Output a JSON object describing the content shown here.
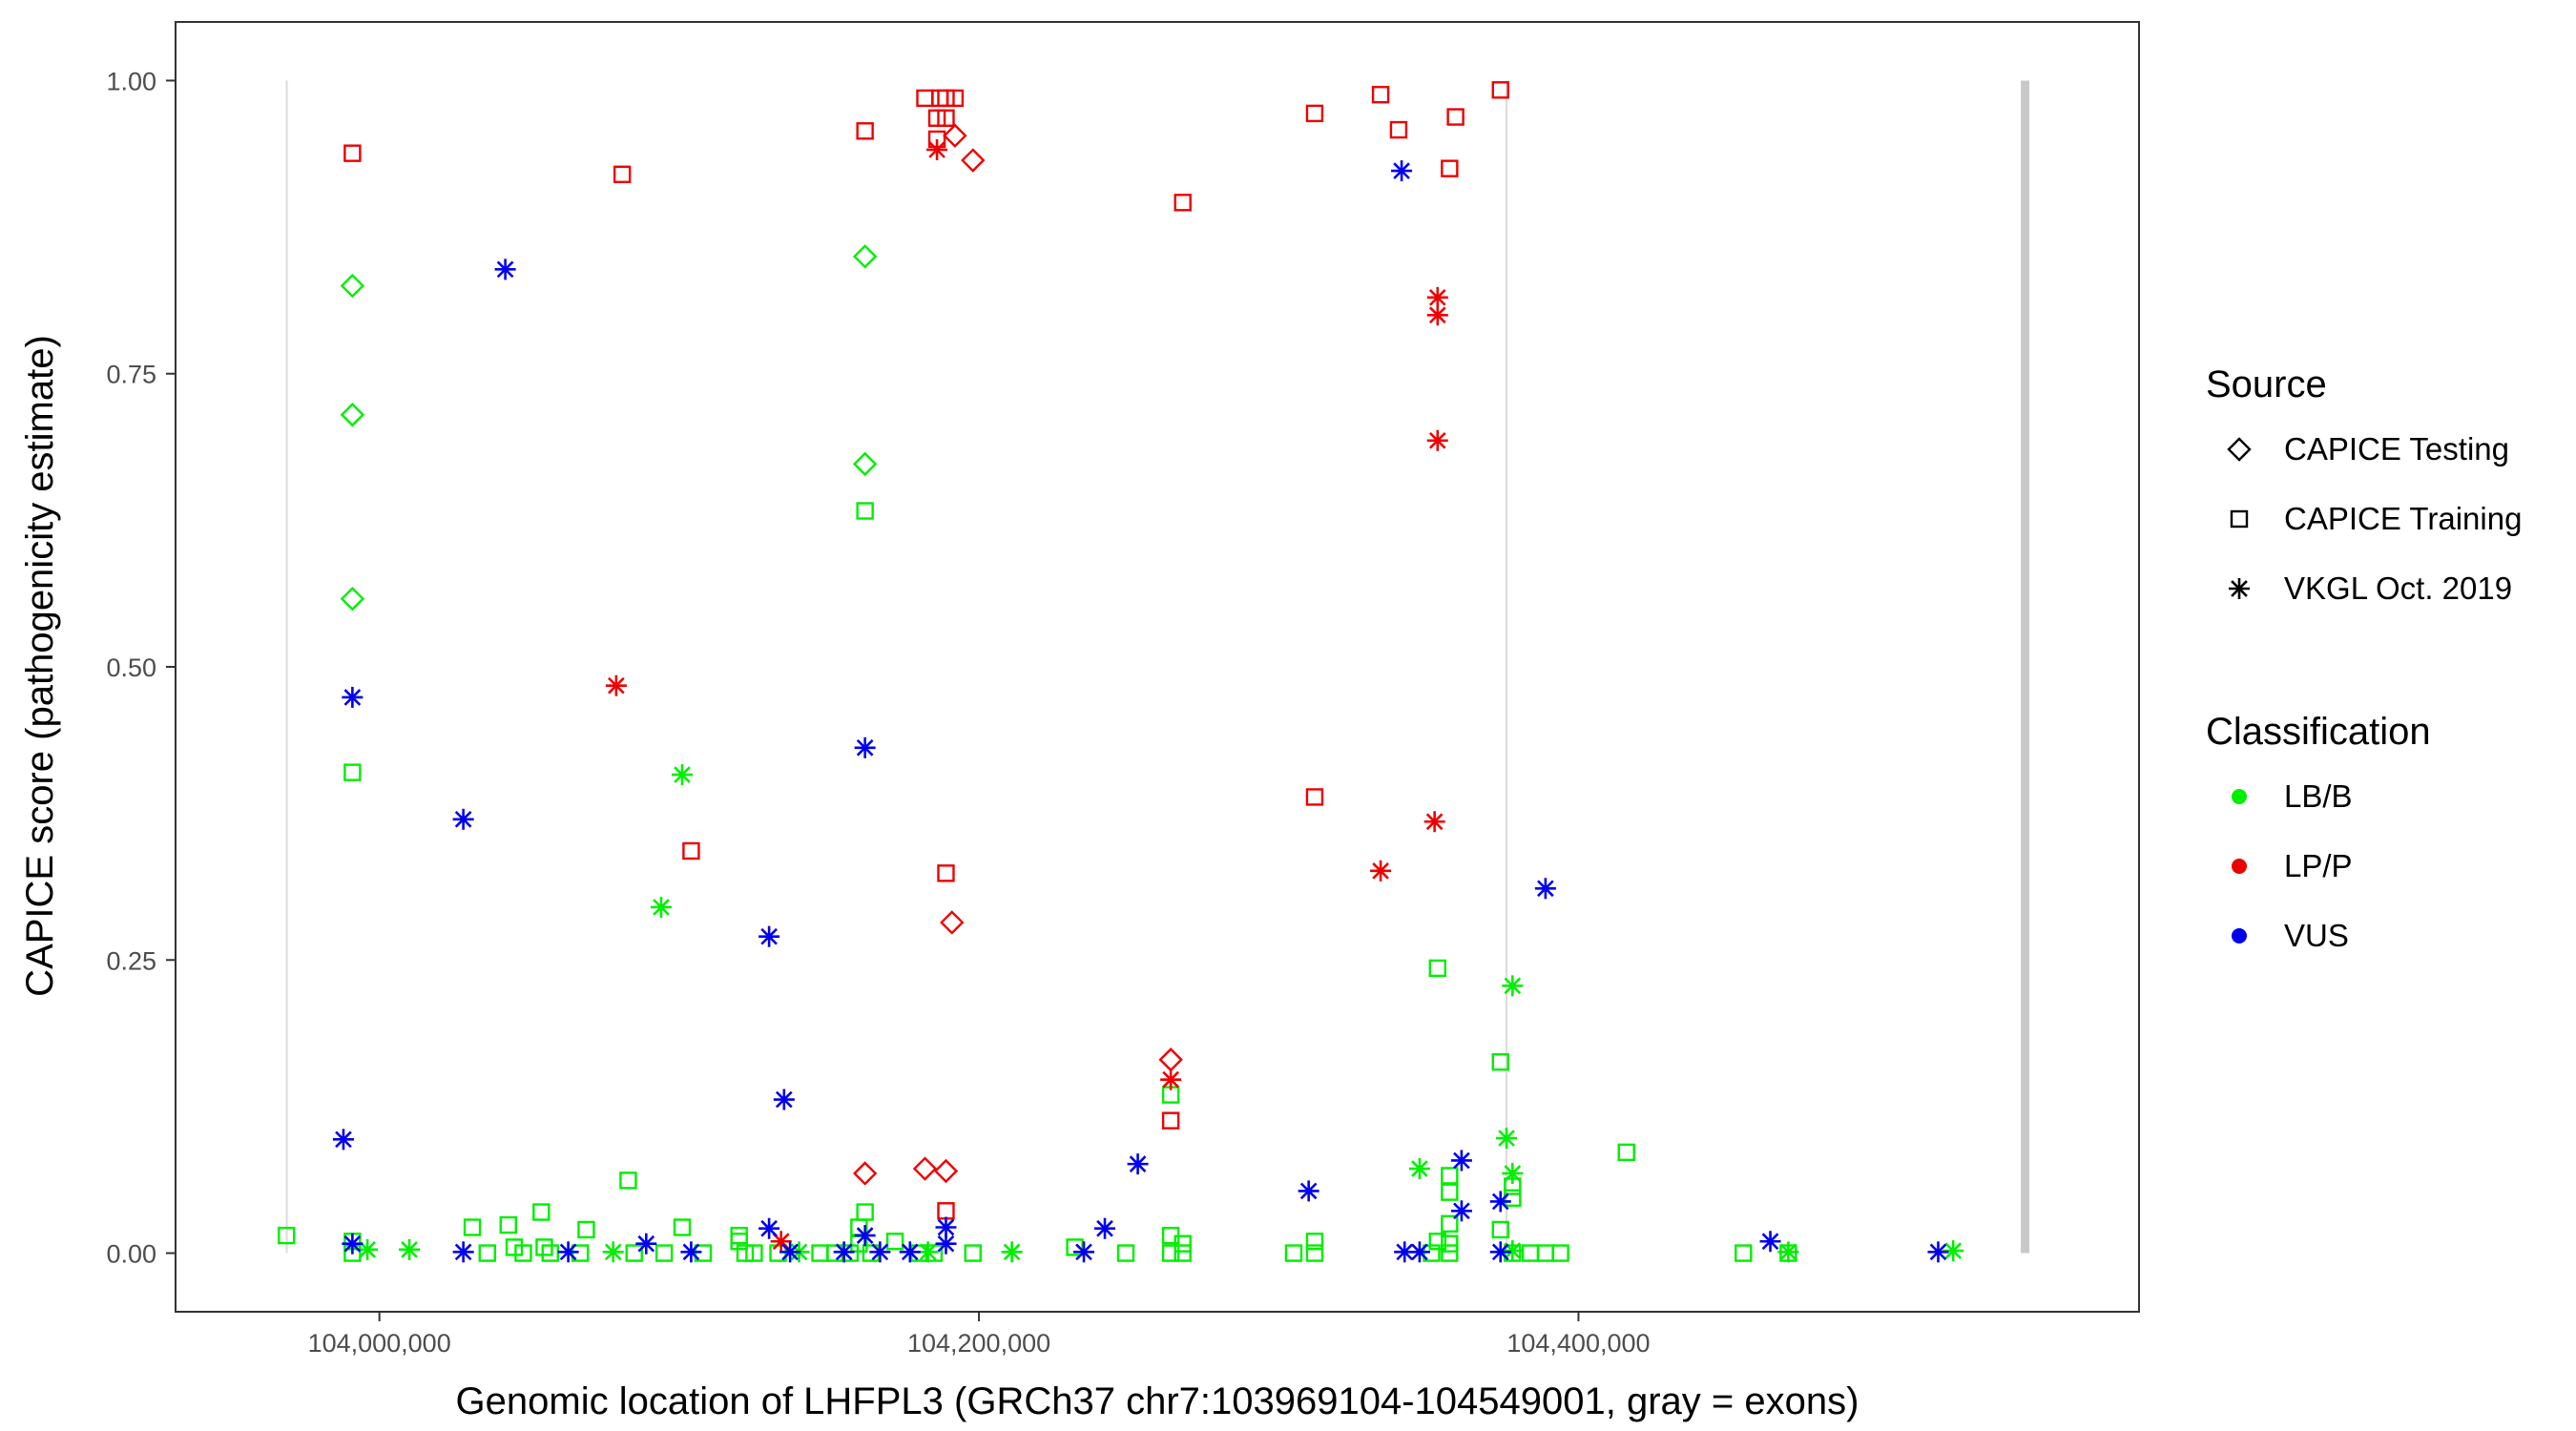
{
  "chart_data": {
    "type": "scatter",
    "title": "",
    "xlabel": "Genomic location of LHFPL3 (GRCh37 chr7:103969104-104549001, gray = exons)",
    "ylabel": "CAPICE score (pathogenicity estimate)",
    "xlim": [
      103932000,
      104587000
    ],
    "ylim": [
      -0.05,
      1.05
    ],
    "x_ticks": [
      104000000,
      104200000,
      104400000
    ],
    "x_tick_labels": [
      "104,000,000",
      "104,200,000",
      "104,400,000"
    ],
    "y_ticks": [
      0,
      0.25,
      0.5,
      0.75,
      1
    ],
    "y_tick_labels": [
      "0.00",
      "0.25",
      "0.50",
      "0.75",
      "1.00"
    ],
    "grid": false,
    "exons": [
      {
        "position": 103969104,
        "thick": false
      },
      {
        "position": 104376000,
        "thick": false
      },
      {
        "position": 104549001,
        "thick": true
      }
    ],
    "legend": {
      "placement": "right",
      "source": {
        "title": "Source",
        "items": [
          {
            "label": "CAPICE Testing",
            "shape": "diamond"
          },
          {
            "label": "CAPICE Training",
            "shape": "square"
          },
          {
            "label": "VKGL Oct. 2019",
            "shape": "asterisk"
          }
        ]
      },
      "classification": {
        "title": "Classification",
        "items": [
          {
            "label": "LB/B",
            "color": "#00ee00"
          },
          {
            "label": "LP/P",
            "color": "#ee0000"
          },
          {
            "label": "VUS",
            "color": "#0000ee"
          }
        ]
      }
    },
    "colors": {
      "LB/B": "#00ee00",
      "LP/P": "#ee0000",
      "VUS": "#0000ee"
    },
    "series": [
      {
        "source": "CAPICE Testing",
        "classification": "LB/B",
        "points": [
          [
            103991000,
            0.825
          ],
          [
            103991000,
            0.715
          ],
          [
            103991000,
            0.558
          ],
          [
            104162000,
            0.85
          ],
          [
            104162000,
            0.673
          ]
        ]
      },
      {
        "source": "CAPICE Testing",
        "classification": "LP/P",
        "points": [
          [
            104192000,
            0.953
          ],
          [
            104198000,
            0.932
          ],
          [
            104191000,
            0.282
          ],
          [
            104264000,
            0.165
          ],
          [
            104162000,
            0.068
          ],
          [
            104182000,
            0.072
          ],
          [
            104189000,
            0.07
          ]
        ]
      },
      {
        "source": "CAPICE Training",
        "classification": "LB/B",
        "points": [
          [
            103969000,
            0.015
          ],
          [
            103991000,
            0.41
          ],
          [
            104162000,
            0.633
          ],
          [
            104353000,
            0.243
          ],
          [
            104374000,
            0.163
          ],
          [
            104416000,
            0.086
          ],
          [
            104083000,
            0.062
          ],
          [
            104357000,
            0.066
          ],
          [
            104357000,
            0.052
          ],
          [
            104378000,
            0.057
          ],
          [
            104378000,
            0.047
          ],
          [
            104162000,
            0.035
          ],
          [
            104054000,
            0.035
          ],
          [
            104031000,
            0.022
          ],
          [
            104043000,
            0.024
          ],
          [
            104069000,
            0.02
          ],
          [
            104101000,
            0.022
          ],
          [
            104120000,
            0.015
          ],
          [
            104160000,
            0.022
          ],
          [
            104357000,
            0.025
          ],
          [
            104374000,
            0.02
          ],
          [
            104264000,
            0.135
          ],
          [
            104264000,
            0.015
          ],
          [
            103991000,
            0.01
          ],
          [
            104172000,
            0.01
          ],
          [
            104120000,
            0.01
          ],
          [
            104312000,
            0.01
          ],
          [
            104353000,
            0.01
          ],
          [
            104357000,
            0.008
          ],
          [
            104268000,
            0.008
          ],
          [
            104160000,
            0.008
          ],
          [
            104232000,
            0.005
          ],
          [
            104045000,
            0.005
          ],
          [
            104055000,
            0.005
          ],
          [
            103991000,
            0.0
          ],
          [
            104036000,
            0.0
          ],
          [
            104048000,
            0.0
          ],
          [
            104057000,
            0.0
          ],
          [
            104067000,
            0.0
          ],
          [
            104085000,
            0.0
          ],
          [
            104095000,
            0.0
          ],
          [
            104108000,
            0.0
          ],
          [
            104122000,
            0.0
          ],
          [
            104125000,
            0.0
          ],
          [
            104133000,
            0.0
          ],
          [
            104147000,
            0.0
          ],
          [
            104152000,
            0.0
          ],
          [
            104157000,
            0.0
          ],
          [
            104164000,
            0.0
          ],
          [
            104180000,
            0.0
          ],
          [
            104185000,
            0.0
          ],
          [
            104198000,
            0.0
          ],
          [
            104249000,
            0.0
          ],
          [
            104264000,
            0.0
          ],
          [
            104268000,
            0.0
          ],
          [
            104305000,
            0.0
          ],
          [
            104312000,
            0.0
          ],
          [
            104351000,
            0.0
          ],
          [
            104357000,
            0.0
          ],
          [
            104378000,
            0.0
          ],
          [
            104384000,
            0.0
          ],
          [
            104389000,
            0.0
          ],
          [
            104394000,
            0.0
          ],
          [
            104455000,
            0.0
          ],
          [
            104470000,
            0.0
          ]
        ]
      },
      {
        "source": "CAPICE Training",
        "classification": "LP/P",
        "points": [
          [
            103991000,
            0.938
          ],
          [
            104081000,
            0.92
          ],
          [
            104162000,
            0.957
          ],
          [
            104182000,
            0.985
          ],
          [
            104187000,
            0.985
          ],
          [
            104189000,
            0.985
          ],
          [
            104192000,
            0.985
          ],
          [
            104186000,
            0.968
          ],
          [
            104189000,
            0.968
          ],
          [
            104186000,
            0.95
          ],
          [
            104268000,
            0.896
          ],
          [
            104312000,
            0.972
          ],
          [
            104334000,
            0.988
          ],
          [
            104340000,
            0.958
          ],
          [
            104359000,
            0.969
          ],
          [
            104357000,
            0.925
          ],
          [
            104374000,
            0.992
          ],
          [
            104312000,
            0.389
          ],
          [
            104104000,
            0.343
          ],
          [
            104189000,
            0.324
          ],
          [
            104264000,
            0.113
          ],
          [
            104189000,
            0.036
          ]
        ]
      },
      {
        "source": "VKGL Oct. 2019",
        "classification": "LB/B",
        "points": [
          [
            104101000,
            0.408
          ],
          [
            104094000,
            0.295
          ],
          [
            104378000,
            0.228
          ],
          [
            104376000,
            0.098
          ],
          [
            104378000,
            0.068
          ],
          [
            104347000,
            0.072
          ],
          [
            103996000,
            0.003
          ],
          [
            104010000,
            0.003
          ],
          [
            104078000,
            0.001
          ],
          [
            104140000,
            0.001
          ],
          [
            104183000,
            0.001
          ],
          [
            104211000,
            0.001
          ],
          [
            104378000,
            0.002
          ],
          [
            104470000,
            0.001
          ],
          [
            104525000,
            0.002
          ]
        ]
      },
      {
        "source": "VKGL Oct. 2019",
        "classification": "LP/P",
        "points": [
          [
            104079000,
            0.484
          ],
          [
            104186000,
            0.941
          ],
          [
            104353000,
            0.815
          ],
          [
            104353000,
            0.8
          ],
          [
            104353000,
            0.693
          ],
          [
            104352000,
            0.368
          ],
          [
            104334000,
            0.326
          ],
          [
            104264000,
            0.148
          ],
          [
            104134000,
            0.01
          ]
        ]
      },
      {
        "source": "VKGL Oct. 2019",
        "classification": "VUS",
        "points": [
          [
            103991000,
            0.474
          ],
          [
            104042000,
            0.839
          ],
          [
            104028000,
            0.37
          ],
          [
            104130000,
            0.27
          ],
          [
            104135000,
            0.131
          ],
          [
            104162000,
            0.431
          ],
          [
            104341000,
            0.923
          ],
          [
            104389000,
            0.311
          ],
          [
            103988000,
            0.097
          ],
          [
            104253000,
            0.076
          ],
          [
            104361000,
            0.079
          ],
          [
            104310000,
            0.053
          ],
          [
            104374000,
            0.044
          ],
          [
            104361000,
            0.036
          ],
          [
            104242000,
            0.021
          ],
          [
            104130000,
            0.021
          ],
          [
            104162000,
            0.015
          ],
          [
            104189000,
            0.022
          ],
          [
            103991000,
            0.008
          ],
          [
            104089000,
            0.008
          ],
          [
            104464000,
            0.01
          ],
          [
            104028000,
            0.001
          ],
          [
            104063000,
            0.001
          ],
          [
            104104000,
            0.001
          ],
          [
            104137000,
            0.001
          ],
          [
            104155000,
            0.001
          ],
          [
            104167000,
            0.001
          ],
          [
            104177000,
            0.001
          ],
          [
            104235000,
            0.001
          ],
          [
            104342000,
            0.001
          ],
          [
            104347000,
            0.001
          ],
          [
            104374000,
            0.001
          ],
          [
            104520000,
            0.001
          ],
          [
            104189000,
            0.008
          ]
        ]
      }
    ]
  }
}
